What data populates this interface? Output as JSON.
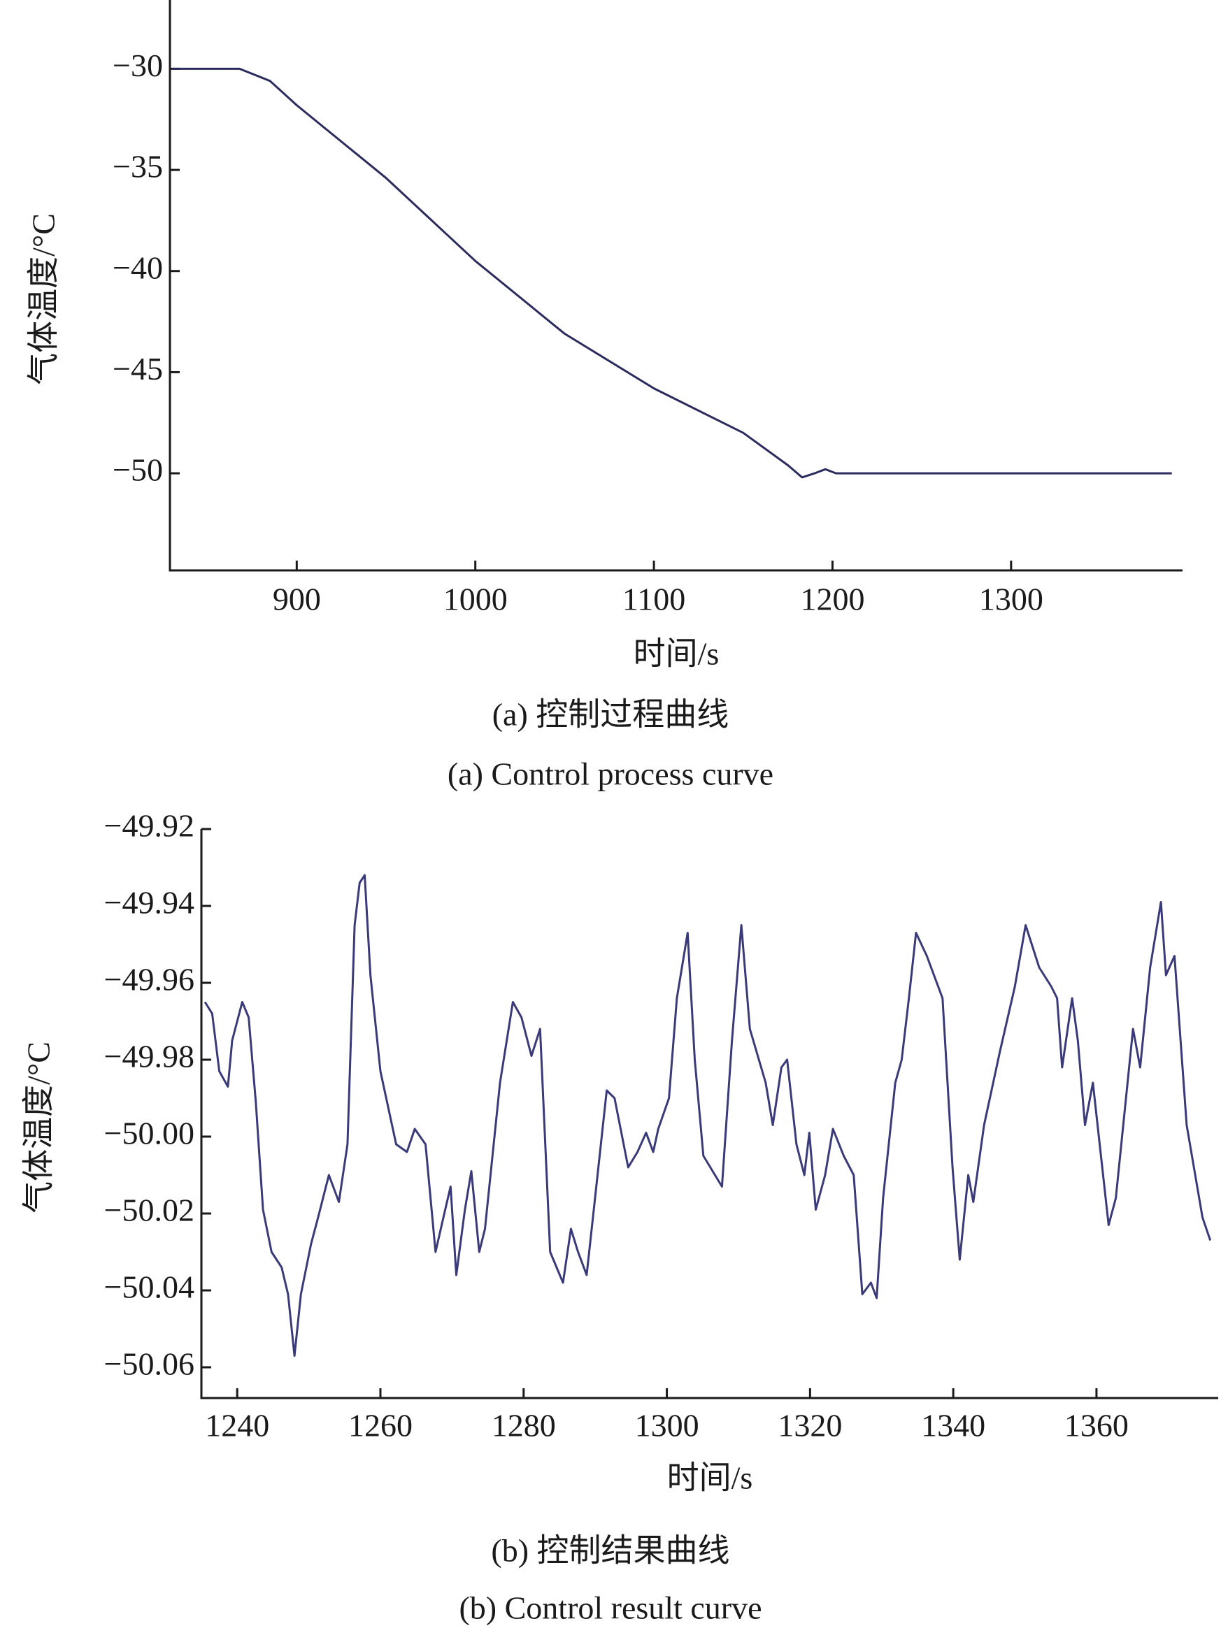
{
  "chart_data": [
    {
      "type": "line",
      "xlabel": "时间/s",
      "ylabel": "气体温度/°C",
      "caption": "(a) 控制过程曲线",
      "caption_en": "(a) Control process curve",
      "xlim": [
        829,
        1396
      ],
      "ylim": [
        -54.8,
        -26.6
      ],
      "xticks": [
        900,
        1000,
        1100,
        1200,
        1300
      ],
      "yticks": [
        {
          "value": -30,
          "label": "−30"
        },
        {
          "value": -35,
          "label": "−35"
        },
        {
          "value": -40,
          "label": "−40"
        },
        {
          "value": -45,
          "label": "−45"
        },
        {
          "value": -50,
          "label": "−50"
        }
      ],
      "series": [
        {
          "color": "#2b2b5e",
          "x": [
            830,
            868,
            885,
            900,
            950,
            1000,
            1050,
            1100,
            1150,
            1175,
            1183,
            1190,
            1196,
            1202,
            1390
          ],
          "values": [
            -30,
            -30,
            -30.6,
            -31.8,
            -35.4,
            -39.5,
            -43.1,
            -45.8,
            -48.0,
            -49.6,
            -50.2,
            -50.0,
            -49.8,
            -50,
            -50
          ]
        }
      ]
    },
    {
      "type": "line",
      "xlabel": "时间/s",
      "ylabel": "气体温度/°C",
      "caption": "(b) 控制结果曲线",
      "caption_en": "(b) Control result curve",
      "xlim": [
        1235,
        1377
      ],
      "ylim": [
        -50.068,
        -49.92
      ],
      "xticks": [
        1240,
        1260,
        1280,
        1300,
        1320,
        1340,
        1360
      ],
      "yticks": [
        {
          "value": -49.92,
          "label": "−49.92"
        },
        {
          "value": -49.94,
          "label": "−49.94"
        },
        {
          "value": -49.96,
          "label": "−49.96"
        },
        {
          "value": -49.98,
          "label": "−49.98"
        },
        {
          "value": -50.0,
          "label": "−50.00"
        },
        {
          "value": -50.02,
          "label": "−50.02"
        },
        {
          "value": -50.04,
          "label": "−50.04"
        },
        {
          "value": -50.06,
          "label": "−50.06"
        }
      ],
      "series": [
        {
          "color": "#3a3a7a",
          "x": [
            1235.5,
            1236.5,
            1237.5,
            1238.7,
            1239.3,
            1240.7,
            1241.6,
            1242.6,
            1243.6,
            1244.8,
            1246.2,
            1247.1,
            1248.0,
            1248.9,
            1250.3,
            1251.3,
            1252.8,
            1254.2,
            1255.4,
            1256.4,
            1257.1,
            1257.8,
            1258.6,
            1260.0,
            1262.2,
            1263.7,
            1264.8,
            1266.3,
            1267.7,
            1268.8,
            1269.8,
            1270.6,
            1271.8,
            1272.7,
            1273.8,
            1274.6,
            1276.7,
            1278.5,
            1279.7,
            1281.1,
            1282.3,
            1283.7,
            1285.5,
            1286.6,
            1287.6,
            1288.8,
            1289.8,
            1291.6,
            1292.7,
            1294.6,
            1295.9,
            1297.1,
            1298.1,
            1298.8,
            1300.3,
            1301.4,
            1302.9,
            1303.9,
            1305.1,
            1307.7,
            1309.1,
            1310.4,
            1311.6,
            1313.8,
            1314.8,
            1316.0,
            1316.8,
            1318.1,
            1319.2,
            1319.9,
            1320.8,
            1322.1,
            1323.2,
            1324.7,
            1326.1,
            1327.3,
            1328.5,
            1329.3,
            1330.2,
            1331.9,
            1332.8,
            1333.8,
            1334.8,
            1336.3,
            1338.5,
            1339.9,
            1340.9,
            1342.1,
            1342.8,
            1344.3,
            1346.5,
            1348.6,
            1350.1,
            1352.0,
            1353.7,
            1354.5,
            1355.2,
            1356.6,
            1357.4,
            1358.4,
            1359.5,
            1361.7,
            1362.7,
            1365.1,
            1366.1,
            1367.5,
            1369.0,
            1369.7,
            1370.9,
            1372.6,
            1374.8,
            1375.9
          ],
          "values": [
            -49.965,
            -49.968,
            -49.983,
            -49.987,
            -49.975,
            -49.965,
            -49.969,
            -49.991,
            -50.019,
            -50.03,
            -50.034,
            -50.041,
            -50.057,
            -50.041,
            -50.028,
            -50.021,
            -50.01,
            -50.017,
            -50.002,
            -49.945,
            -49.934,
            -49.932,
            -49.958,
            -49.983,
            -50.002,
            -50.004,
            -49.998,
            -50.002,
            -50.03,
            -50.021,
            -50.013,
            -50.036,
            -50.019,
            -50.009,
            -50.03,
            -50.024,
            -49.986,
            -49.965,
            -49.969,
            -49.979,
            -49.972,
            -50.03,
            -50.038,
            -50.024,
            -50.03,
            -50.036,
            -50.019,
            -49.988,
            -49.99,
            -50.008,
            -50.004,
            -49.999,
            -50.004,
            -49.998,
            -49.99,
            -49.964,
            -49.947,
            -49.98,
            -50.005,
            -50.013,
            -49.975,
            -49.945,
            -49.972,
            -49.986,
            -49.997,
            -49.982,
            -49.98,
            -50.002,
            -50.01,
            -49.999,
            -50.019,
            -50.01,
            -49.998,
            -50.005,
            -50.01,
            -50.041,
            -50.038,
            -50.042,
            -50.016,
            -49.986,
            -49.98,
            -49.964,
            -49.947,
            -49.953,
            -49.964,
            -50.008,
            -50.032,
            -50.01,
            -50.017,
            -49.997,
            -49.978,
            -49.961,
            -49.945,
            -49.956,
            -49.961,
            -49.964,
            -49.982,
            -49.964,
            -49.975,
            -49.997,
            -49.986,
            -50.023,
            -50.016,
            -49.972,
            -49.982,
            -49.956,
            -49.939,
            -49.958,
            -49.953,
            -49.997,
            -50.021,
            -50.027
          ]
        }
      ]
    }
  ]
}
